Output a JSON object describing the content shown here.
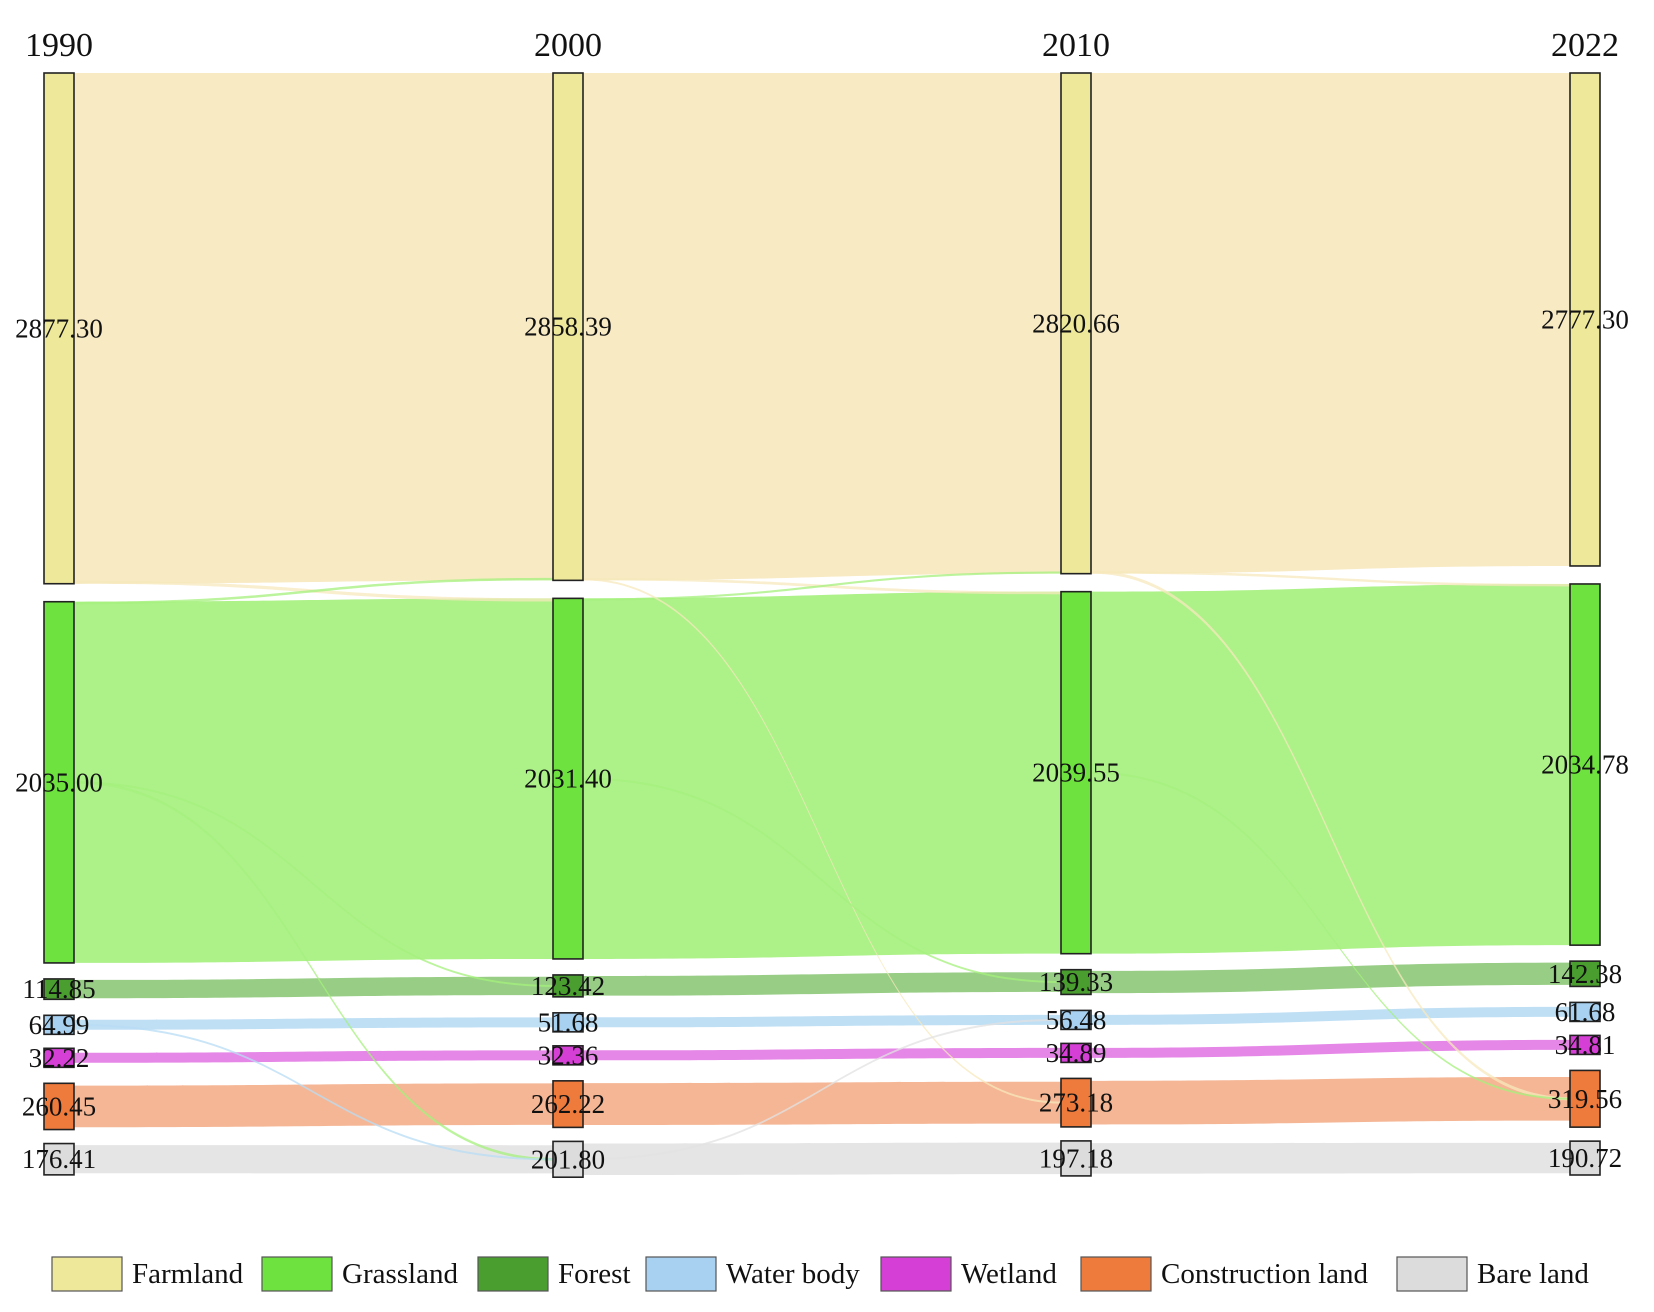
{
  "chart_data": {
    "type": "sankey",
    "title": "",
    "years": [
      "1990",
      "2000",
      "2010",
      "2022"
    ],
    "categories": [
      "Farmland",
      "Grassland",
      "Forest",
      "Water body",
      "Wetland",
      "Construction land",
      "Bare land"
    ],
    "colors": {
      "node": [
        "#eee89a",
        "#6ee23e",
        "#4a9e30",
        "#a8d0f0",
        "#d63fd6",
        "#ee7a3c",
        "#dcdcdc"
      ],
      "flow": [
        "#f7e8bc",
        "#a4f07c",
        "#8cc878",
        "#b8dcf4",
        "#e27ae4",
        "#f4ae8a",
        "#e2e2e2"
      ],
      "legend": [
        "#eee89a",
        "#6ee23e",
        "#4a9e30",
        "#a8d0f0",
        "#d63fd6",
        "#ee7a3c",
        "#dcdcdc"
      ]
    },
    "series": [
      {
        "name": "1990",
        "values": [
          2877.3,
          2035.0,
          114.85,
          64.99,
          32.22,
          260.45,
          176.41
        ]
      },
      {
        "name": "2000",
        "values": [
          2858.39,
          2031.4,
          123.42,
          51.68,
          32.36,
          262.22,
          201.8
        ]
      },
      {
        "name": "2010",
        "values": [
          2820.66,
          2039.55,
          139.33,
          56.48,
          34.89,
          273.18,
          197.18
        ]
      },
      {
        "name": "2022",
        "values": [
          2777.3,
          2034.78,
          142.38,
          61.68,
          34.81,
          319.56,
          190.72
        ]
      }
    ],
    "value_labels": [
      [
        "2877.30",
        "2035.00",
        "114.85",
        "64.99",
        "32.22",
        "260.45",
        "176.41"
      ],
      [
        "2858.39",
        "2031.40",
        "123.42",
        "51.68",
        "32.36",
        "262.22",
        "201.80"
      ],
      [
        "2820.66",
        "2039.55",
        "139.33",
        "56.48",
        "34.89",
        "273.18",
        "197.18"
      ],
      [
        "2777.30",
        "2034.78",
        "142.38",
        "61.68",
        "34.81",
        "319.56",
        "190.72"
      ]
    ],
    "cross_flows": [
      {
        "period": 0,
        "from": "Farmland",
        "to": "Grassland",
        "value": 18
      },
      {
        "period": 0,
        "from": "Grassland",
        "to": "Farmland",
        "value": 14
      },
      {
        "period": 0,
        "from": "Grassland",
        "to": "Bare land",
        "value": 15
      },
      {
        "period": 0,
        "from": "Water body",
        "to": "Bare land",
        "value": 9
      },
      {
        "period": 0,
        "from": "Grassland",
        "to": "Forest",
        "value": 6
      },
      {
        "period": 1,
        "from": "Farmland",
        "to": "Grassland",
        "value": 15
      },
      {
        "period": 1,
        "from": "Grassland",
        "to": "Farmland",
        "value": 12
      },
      {
        "period": 1,
        "from": "Farmland",
        "to": "Construction land",
        "value": 6
      },
      {
        "period": 1,
        "from": "Grassland",
        "to": "Forest",
        "value": 10
      },
      {
        "period": 1,
        "from": "Bare land",
        "to": "Water body",
        "value": 5
      },
      {
        "period": 2,
        "from": "Farmland",
        "to": "Construction land",
        "value": 18
      },
      {
        "period": 2,
        "from": "Farmland",
        "to": "Grassland",
        "value": 14
      },
      {
        "period": 2,
        "from": "Grassland",
        "to": "Construction land",
        "value": 8
      }
    ],
    "legend": {
      "position": "bottom",
      "labels": [
        "Farmland",
        "Grassland",
        "Forest",
        "Water body",
        "Wetland",
        "Construction land",
        "Bare land"
      ]
    }
  }
}
